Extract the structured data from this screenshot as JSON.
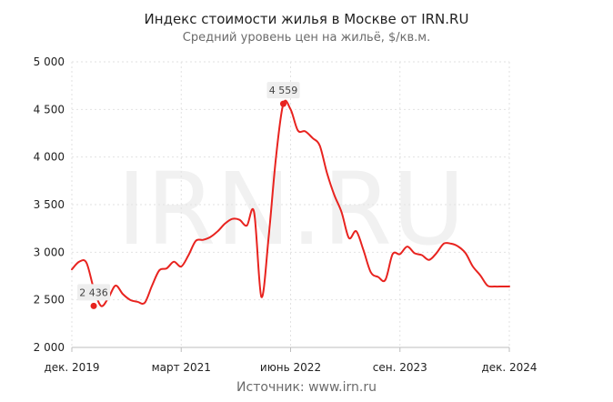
{
  "header": {
    "title": "Индекс стоимости жилья в Москве от IRN.RU",
    "subtitle": "Средний уровень цен на жильё, $/кв.м."
  },
  "footer": {
    "source": "Источник: www.irn.ru"
  },
  "watermark": "IRN.RU",
  "colors": {
    "line": "#e8231f",
    "grid": "#e2e2e2",
    "axis": "#bdbdbd",
    "label_bg": "#eeeeee"
  },
  "chart_data": {
    "type": "line",
    "title": "Индекс стоимости жилья в Москве от IRN.RU",
    "subtitle": "Средний уровень цен на жильё, $/кв.м.",
    "xlabel": "",
    "ylabel": "",
    "ylim": [
      2000,
      5000
    ],
    "yticks": [
      2000,
      2500,
      3000,
      3500,
      4000,
      4500,
      5000
    ],
    "ytick_labels": [
      "2 000",
      "2 500",
      "3 000",
      "3 500",
      "4 000",
      "4 500",
      "5 000"
    ],
    "xlim": [
      "2019-12",
      "2024-12"
    ],
    "xticks": [
      "2019-12",
      "2021-03",
      "2022-06",
      "2023-09",
      "2024-12"
    ],
    "xtick_labels": [
      "дек. 2019",
      "март 2021",
      "июнь 2022",
      "сен. 2023",
      "дек. 2024"
    ],
    "grid": true,
    "series": [
      {
        "x": [
          "2019-12",
          "2020-01",
          "2020-02",
          "2020-03",
          "2020-04",
          "2020-05",
          "2020-06",
          "2020-07",
          "2020-08",
          "2020-09",
          "2020-10",
          "2020-11",
          "2020-12",
          "2021-01",
          "2021-02",
          "2021-03",
          "2021-04",
          "2021-05",
          "2021-06",
          "2021-07",
          "2021-08",
          "2021-09",
          "2021-10",
          "2021-11",
          "2021-12",
          "2022-01",
          "2022-02",
          "2022-03",
          "2022-04",
          "2022-05",
          "2022-06",
          "2022-07",
          "2022-08",
          "2022-09",
          "2022-10",
          "2022-11",
          "2022-12",
          "2023-01",
          "2023-02",
          "2023-03",
          "2023-04",
          "2023-05",
          "2023-06",
          "2023-07",
          "2023-08",
          "2023-09",
          "2023-10",
          "2023-11",
          "2023-12",
          "2024-01",
          "2024-02",
          "2024-03",
          "2024-04",
          "2024-05",
          "2024-06",
          "2024-07",
          "2024-08",
          "2024-09",
          "2024-10",
          "2024-11",
          "2024-12"
        ],
        "values": [
          2820,
          2900,
          2890,
          2620,
          2436,
          2520,
          2650,
          2560,
          2500,
          2480,
          2470,
          2650,
          2810,
          2830,
          2900,
          2850,
          2970,
          3120,
          3130,
          3160,
          3220,
          3300,
          3350,
          3340,
          3280,
          3420,
          2530,
          3170,
          4000,
          4559,
          4500,
          4280,
          4270,
          4200,
          4120,
          3830,
          3600,
          3420,
          3150,
          3220,
          3020,
          2790,
          2740,
          2710,
          2980,
          2980,
          3060,
          2990,
          2970,
          2920,
          2990,
          3090,
          3090,
          3060,
          2990,
          2850,
          2760,
          2650,
          2640,
          2640,
          2640
        ]
      }
    ],
    "annotations": [
      {
        "x": "2020-03",
        "y": 2436,
        "label": "2 436"
      },
      {
        "x": "2022-05",
        "y": 4559,
        "label": "4 559"
      }
    ]
  }
}
